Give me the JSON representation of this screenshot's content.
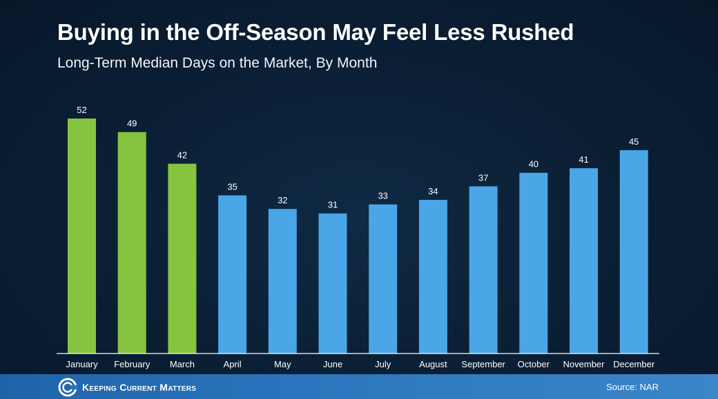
{
  "title": "Buying in the Off-Season May Feel Less Rushed",
  "subtitle": "Long-Term Median Days on the Market, By Month",
  "colors": {
    "highlight": "#86c440",
    "bar": "#4aa6e6",
    "axis": "#ffffff"
  },
  "chart_data": {
    "type": "bar",
    "categories": [
      "January",
      "February",
      "March",
      "April",
      "May",
      "June",
      "July",
      "August",
      "September",
      "October",
      "November",
      "December"
    ],
    "values": [
      52,
      49,
      42,
      35,
      32,
      31,
      33,
      34,
      37,
      40,
      41,
      45
    ],
    "highlighted": [
      true,
      true,
      true,
      false,
      false,
      false,
      false,
      false,
      false,
      false,
      false,
      false
    ],
    "title": "Buying in the Off-Season May Feel Less Rushed",
    "subtitle": "Long-Term Median Days on the Market, By Month",
    "xlabel": "",
    "ylabel": "",
    "ylim": [
      0,
      52
    ],
    "grid": false,
    "legend": "none",
    "data_labels": true
  },
  "footer": {
    "brand": "Keeping Current Matters",
    "brand_icon": "kcm-logo-icon",
    "source": "Source: NAR"
  }
}
